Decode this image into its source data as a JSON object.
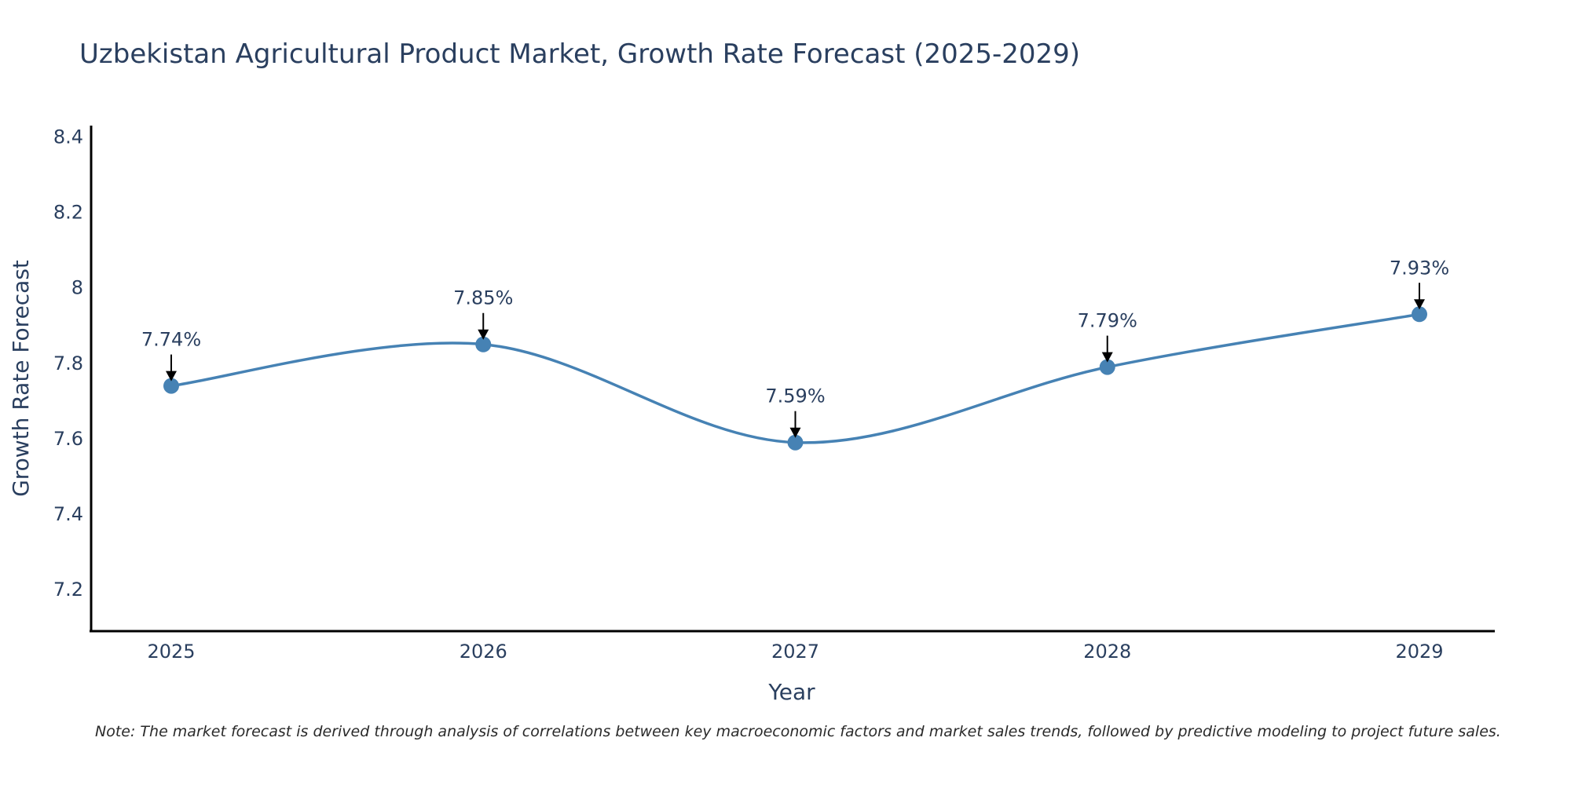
{
  "colors": {
    "line": "#4682b4",
    "marker": "#4682b4",
    "axis": "#000000",
    "arrow": "#000000",
    "text": "#2a3f5f"
  },
  "chart_data": {
    "type": "line",
    "title": "Uzbekistan Agricultural Product Market, Growth Rate Forecast (2025-2029)",
    "xlabel": "Year",
    "ylabel": "Growth Rate Forecast",
    "categories": [
      "2025",
      "2026",
      "2027",
      "2028",
      "2029"
    ],
    "values": [
      7.74,
      7.85,
      7.59,
      7.79,
      7.93
    ],
    "data_labels": [
      "7.74%",
      "7.85%",
      "7.59%",
      "7.79%",
      "7.93%"
    ],
    "ylim": [
      7.09,
      8.43
    ],
    "yticks": [
      7.2,
      7.4,
      7.6,
      7.8,
      8,
      8.2,
      8.4
    ],
    "ytick_labels": [
      "7.2",
      "7.4",
      "7.6",
      "7.8",
      "8",
      "8.2",
      "8.4"
    ],
    "grid": false,
    "smoothing": "spline",
    "note": "Note: The market forecast is derived through analysis of correlations between key macroeconomic factors and market sales trends, followed by predictive modeling to project future sales."
  }
}
